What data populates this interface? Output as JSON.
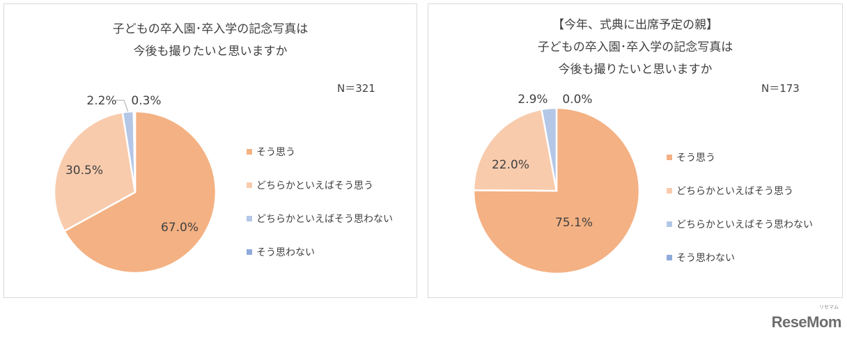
{
  "colors": {
    "sou_omou": "#f4b183",
    "dochiraka_sou": "#f8cbad",
    "dochiraka_omowanai": "#b4c7e7",
    "sou_omowanai": "#8faadc"
  },
  "chart_data": [
    {
      "type": "pie",
      "title_lines": [
        "子どもの卒入園･卒入学の記念写真は",
        "今後も撮りたいと思いますか"
      ],
      "n_label": "N＝321",
      "categories": [
        "そう思う",
        "どちらかといえばそう思う",
        "どちらかといえばそう思わない",
        "そう思わない"
      ],
      "values": [
        67.0,
        30.5,
        2.2,
        0.3
      ],
      "data_labels": [
        "67.0%",
        "30.5%",
        "2.2%",
        "0.3%"
      ],
      "legend_position": "right"
    },
    {
      "type": "pie",
      "title_lines": [
        "【今年、式典に出席予定の親】",
        "子どもの卒入園･卒入学の記念写真は",
        "今後も撮りたいと思いますか"
      ],
      "n_label": "N＝173",
      "categories": [
        "そう思う",
        "どちらかといえばそう思う",
        "どちらかといえばそう思わない",
        "そう思わない"
      ],
      "values": [
        75.1,
        22.0,
        2.9,
        0.0
      ],
      "data_labels": [
        "75.1%",
        "22.0%",
        "2.9%",
        "0.0%"
      ],
      "legend_position": "right"
    }
  ],
  "brand": {
    "logo_text": "ReseMom",
    "logo_subtext": "リセマム"
  }
}
